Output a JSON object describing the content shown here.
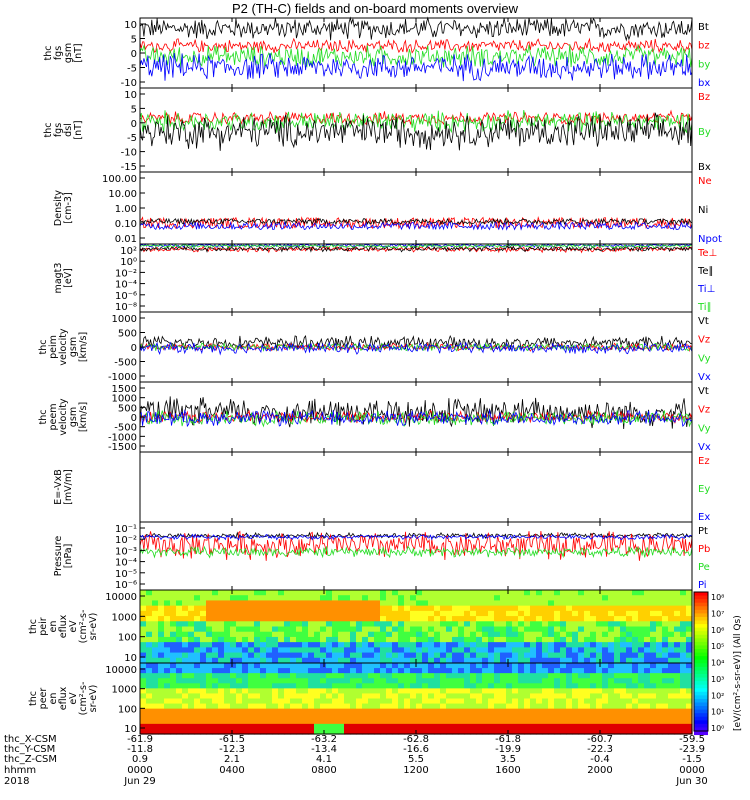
{
  "title": "P2 (TH-C) fields and on-board moments overview",
  "colors": {
    "black": "#000000",
    "red": "#ff0000",
    "green": "#22dd22",
    "blue": "#0000ff"
  },
  "chart_data": [
    {
      "type": "line",
      "name": "fgs-gsm",
      "ylabel": [
        "thc",
        "fgs",
        "gsm",
        "[nT]"
      ],
      "yticks": [
        "10",
        "5",
        "0",
        "-5",
        "-10"
      ],
      "ylim": [
        -10,
        10
      ],
      "series": [
        {
          "name": "Bt",
          "color": "black",
          "mean": 7,
          "amp": 2.5
        },
        {
          "name": "bz",
          "color": "red",
          "mean": 2,
          "amp": 1.5
        },
        {
          "name": "by",
          "color": "green",
          "mean": -1,
          "amp": 2.5
        },
        {
          "name": "bx",
          "color": "blue",
          "mean": -4,
          "amp": 3
        }
      ]
    },
    {
      "type": "line",
      "name": "fgs-dsl",
      "ylabel": [
        "thc",
        "fgs",
        "dsl",
        "[nT]"
      ],
      "yticks": [
        "10",
        "5",
        "0",
        "-5",
        "-10",
        "-15"
      ],
      "ylim": [
        -15,
        10
      ],
      "series": [
        {
          "name": "Bz",
          "color": "red",
          "mean": 1,
          "amp": 1.5
        },
        {
          "name": "By",
          "color": "green",
          "mean": 0,
          "amp": 2.5
        },
        {
          "name": "Bx",
          "color": "black",
          "mean": -3,
          "amp": 4
        }
      ]
    },
    {
      "type": "line",
      "name": "density",
      "ylabel": [
        "Density",
        "[cm-3]"
      ],
      "yticks": [
        "100.00",
        "10.00",
        "1.00",
        "0.10",
        "0.01"
      ],
      "ylim": [
        0.01,
        100
      ],
      "series": [
        {
          "name": "Ne",
          "color": "red",
          "mean": 0.15,
          "amp": 0.6
        },
        {
          "name": "Ni",
          "color": "black",
          "mean": 0.18,
          "amp": 0.3
        },
        {
          "name": "Npot",
          "color": "blue",
          "mean": 0.1,
          "amp": 0.4
        }
      ]
    },
    {
      "type": "line",
      "name": "temperature",
      "ylabel": [
        "magt3",
        "[eV]"
      ],
      "yticks": [
        "10²",
        "10⁰",
        "10⁻²",
        "10⁻⁴",
        "10⁻⁶",
        "10⁻⁸"
      ],
      "ylim": [
        -8,
        2
      ],
      "series": [
        {
          "name": "Te⊥",
          "color": "red",
          "mean": 1.2,
          "amp": 0.3
        },
        {
          "name": "Te∥",
          "color": "black",
          "mean": 1.3,
          "amp": 0.3
        },
        {
          "name": "Ti⊥",
          "color": "blue",
          "mean": 1.8,
          "amp": 0.2
        },
        {
          "name": "Ti∥",
          "color": "green",
          "mean": 1.7,
          "amp": 0.2
        }
      ]
    },
    {
      "type": "line",
      "name": "peim-velocity",
      "ylabel": [
        "thc",
        "peim",
        "velocity",
        "gsm",
        "[km/s]"
      ],
      "yticks": [
        "1000",
        "500",
        "0",
        "-500",
        "-1000"
      ],
      "ylim": [
        -1000,
        1000
      ],
      "series": [
        {
          "name": "Vt",
          "color": "black",
          "mean": 120,
          "amp": 150
        },
        {
          "name": "Vz",
          "color": "red",
          "mean": 0,
          "amp": 80
        },
        {
          "name": "Vy",
          "color": "green",
          "mean": 0,
          "amp": 80
        },
        {
          "name": "Vx",
          "color": "blue",
          "mean": -30,
          "amp": 120
        }
      ]
    },
    {
      "type": "line",
      "name": "peem-velocity",
      "ylabel": [
        "thc",
        "peem",
        "velocity",
        "gsm",
        "[km/s]"
      ],
      "yticks": [
        "1500",
        "1000",
        "500",
        "0",
        "-500",
        "-1000",
        "-1500"
      ],
      "ylim": [
        -1500,
        1500
      ],
      "series": [
        {
          "name": "Vt",
          "color": "black",
          "mean": 200,
          "amp": 500
        },
        {
          "name": "Vz",
          "color": "red",
          "mean": 0,
          "amp": 200
        },
        {
          "name": "Vy",
          "color": "green",
          "mean": -50,
          "amp": 250
        },
        {
          "name": "Vx",
          "color": "blue",
          "mean": -50,
          "amp": 250
        }
      ]
    },
    {
      "type": "line",
      "name": "efield",
      "ylabel": [
        "E=-VxB",
        "[mV/m]"
      ],
      "yticks": [],
      "ylim": [
        -1,
        1
      ],
      "series": [
        {
          "name": "Ez",
          "color": "red"
        },
        {
          "name": "Ey",
          "color": "green"
        },
        {
          "name": "Ex",
          "color": "blue"
        }
      ]
    },
    {
      "type": "line",
      "name": "pressure",
      "ylabel": [
        "Pressure",
        "[nPa]"
      ],
      "yticks": [
        "10⁻¹",
        "10⁻²",
        "10⁻³",
        "10⁻⁴",
        "10⁻⁵",
        "10⁻⁶"
      ],
      "ylim": [
        -6,
        -1
      ],
      "series": [
        {
          "name": "Pt",
          "color": "black",
          "mean": -2.0,
          "amp": 0.15
        },
        {
          "name": "Pb",
          "color": "red",
          "mean": -2.7,
          "amp": 0.8
        },
        {
          "name": "Pe",
          "color": "green",
          "mean": -3.2,
          "amp": 0.3
        },
        {
          "name": "Pi",
          "color": "blue",
          "mean": -2.1,
          "amp": 0.15
        }
      ]
    },
    {
      "type": "heatmap",
      "name": "peir-spectrogram",
      "ylabel": [
        "thc",
        "peir",
        "en",
        "eflux",
        "eV",
        "(cm²-s-",
        "sr-eV)"
      ],
      "yticks": [
        "10000",
        "1000",
        "100",
        "10"
      ],
      "ylim": [
        5,
        25000
      ]
    },
    {
      "type": "heatmap",
      "name": "peer-spectrogram",
      "ylabel": [
        "thc",
        "peer",
        "en",
        "eflux",
        "eV",
        "(cm²-s-",
        "sr-eV)"
      ],
      "yticks": [
        "10000",
        "1000",
        "100",
        "10"
      ],
      "ylim": [
        5,
        25000
      ]
    }
  ],
  "colorbar": {
    "ticks": [
      "10⁸",
      "10⁷",
      "10⁶",
      "10⁵",
      "10⁴",
      "10³",
      "10²",
      "10¹",
      "10⁰"
    ],
    "label": "[eV/(cm²-s-sr-eV)] (All Qs)"
  },
  "xaxis": {
    "row_labels": [
      "thc_X-CSM",
      "thc_Y-CSM",
      "thc_Z-CSM",
      "hhmm",
      "2018"
    ],
    "columns": [
      {
        "x": "-61.9",
        "y": "-11.8",
        "z": "0.9",
        "hhmm": "0000",
        "date": "Jun 29"
      },
      {
        "x": "-61.5",
        "y": "-12.3",
        "z": "2.1",
        "hhmm": "0400",
        "date": ""
      },
      {
        "x": "-63.2",
        "y": "-13.4",
        "z": "4.1",
        "hhmm": "0800",
        "date": ""
      },
      {
        "x": "-62.8",
        "y": "-16.6",
        "z": "5.5",
        "hhmm": "1200",
        "date": ""
      },
      {
        "x": "-61.8",
        "y": "-19.9",
        "z": "3.5",
        "hhmm": "1600",
        "date": ""
      },
      {
        "x": "-60.7",
        "y": "-22.3",
        "z": "-0.4",
        "hhmm": "2000",
        "date": ""
      },
      {
        "x": "-59.5",
        "y": "-23.9",
        "z": "-1.5",
        "hhmm": "0000",
        "date": "Jun 30"
      }
    ]
  }
}
